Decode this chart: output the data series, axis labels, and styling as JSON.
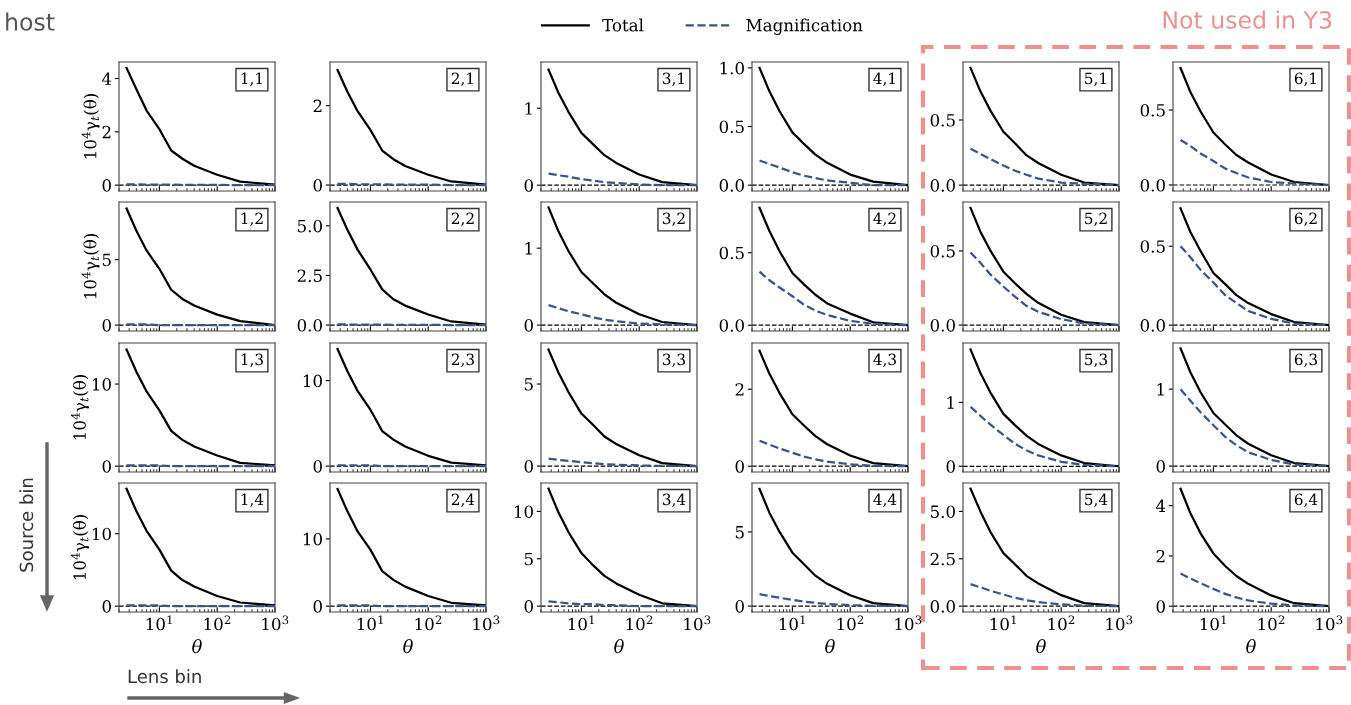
{
  "chart_data": [
    {
      "type": "line",
      "log": "x",
      "legend": "top",
      "x": [
        2.7,
        4,
        6,
        10,
        16,
        25,
        40,
        100,
        250,
        1000
      ],
      "xlim": [
        2,
        1000
      ],
      "xticks": [
        {
          "value": 10,
          "label": null
        },
        {
          "value": 100,
          "label": null
        },
        {
          "value": 1000,
          "label": null
        }
      ],
      "ylim": [
        -0.22,
        4.62
      ],
      "yticks": [
        0,
        2,
        4
      ],
      "tick_labels": "y",
      "ylabel": "10$^{4}$γ$_{t}$(θ)",
      "ref_lines": [
        {
          "axis": "y",
          "value": 0,
          "color": "#000000",
          "line_style": "dashed"
        }
      ],
      "annotations": [
        "1,1",
        "host",
        "Source bin",
        "Lens bin",
        "Not used in Y3"
      ],
      "series": [
        {
          "name": "Total",
          "color": "#000000",
          "line_style": "solid",
          "values": [
            4.4,
            3.6,
            2.8,
            2.1,
            1.3,
            0.99,
            0.73,
            0.39,
            0.13,
            0.02
          ]
        },
        {
          "name": "Magnification",
          "color": "#3a5488",
          "line_style": "dashed",
          "values": [
            0.03,
            0.03,
            0.02,
            0.02,
            0.02,
            0.01,
            0.01,
            0.01,
            0,
            0
          ]
        }
      ]
    },
    {
      "type": "line",
      "log": "x",
      "x": [
        2.7,
        4,
        6,
        10,
        16,
        25,
        40,
        100,
        250,
        1000
      ],
      "xlim": [
        2,
        1000
      ],
      "xticks": [
        {
          "value": 10,
          "label": null
        },
        {
          "value": 100,
          "label": null
        },
        {
          "value": 1000,
          "label": null
        }
      ],
      "ylim": [
        -0.15,
        3.1
      ],
      "yticks": [
        0,
        2
      ],
      "tick_labels": "y",
      "ref_lines": [
        {
          "axis": "y",
          "value": 0,
          "color": "#000000",
          "line_style": "dashed"
        }
      ],
      "annotations": [
        "2,1"
      ],
      "series": [
        {
          "color": "#000000",
          "line_style": "solid",
          "values": [
            2.9,
            2.35,
            1.86,
            1.39,
            0.87,
            0.65,
            0.48,
            0.26,
            0.09,
            0.01
          ]
        },
        {
          "color": "#3a5488",
          "line_style": "dashed",
          "values": [
            0.03,
            0.03,
            0.02,
            0.02,
            0.02,
            0.01,
            0.01,
            0.01,
            0,
            0
          ]
        }
      ]
    },
    {
      "type": "line",
      "log": "x",
      "x": [
        2.7,
        4,
        6,
        10,
        16,
        25,
        40,
        100,
        250,
        1000
      ],
      "xlim": [
        2,
        1000
      ],
      "xticks": [
        {
          "value": 10,
          "label": null
        },
        {
          "value": 100,
          "label": null
        },
        {
          "value": 1000,
          "label": null
        }
      ],
      "ylim": [
        -0.075,
        1.6
      ],
      "yticks": [
        0,
        1
      ],
      "tick_labels": "y",
      "ref_lines": [
        {
          "axis": "y",
          "value": 0,
          "color": "#000000",
          "line_style": "dashed"
        }
      ],
      "annotations": [
        "3,1"
      ],
      "series": [
        {
          "color": "#000000",
          "line_style": "solid",
          "values": [
            1.5,
            1.2,
            0.95,
            0.68,
            0.53,
            0.39,
            0.29,
            0.14,
            0.04,
            0
          ]
        },
        {
          "color": "#3a5488",
          "line_style": "dashed",
          "values": [
            0.15,
            0.13,
            0.11,
            0.08,
            0.06,
            0.04,
            0.03,
            0.01,
            0,
            0
          ]
        }
      ]
    },
    {
      "type": "line",
      "log": "x",
      "x": [
        2.7,
        4,
        6,
        10,
        16,
        25,
        40,
        100,
        250,
        1000
      ],
      "xlim": [
        2,
        1000
      ],
      "xticks": [
        {
          "value": 10,
          "label": null
        },
        {
          "value": 100,
          "label": null
        },
        {
          "value": 1000,
          "label": null
        }
      ],
      "ylim": [
        -0.05,
        1.05
      ],
      "yticks": [
        {
          "value": 0,
          "label": "0.0"
        },
        0.5,
        {
          "value": 1,
          "label": "1.0"
        }
      ],
      "tick_labels": "y",
      "ref_lines": [
        {
          "axis": "y",
          "value": 0,
          "color": "#000000",
          "line_style": "dashed"
        }
      ],
      "annotations": [
        "4,1"
      ],
      "series": [
        {
          "color": "#000000",
          "line_style": "solid",
          "values": [
            1.0,
            0.8,
            0.63,
            0.45,
            0.35,
            0.26,
            0.19,
            0.09,
            0.03,
            0
          ]
        },
        {
          "color": "#3a5488",
          "line_style": "dashed",
          "values": [
            0.21,
            0.18,
            0.15,
            0.11,
            0.08,
            0.06,
            0.04,
            0.02,
            0,
            0
          ]
        }
      ]
    },
    {
      "type": "line",
      "log": "x",
      "x": [
        2.7,
        4,
        6,
        10,
        16,
        25,
        40,
        100,
        250,
        1000
      ],
      "xlim": [
        2,
        1000
      ],
      "xticks": [
        {
          "value": 10,
          "label": null
        },
        {
          "value": 100,
          "label": null
        },
        {
          "value": 1000,
          "label": null
        }
      ],
      "ylim": [
        -0.045,
        0.945
      ],
      "yticks": [
        {
          "value": 0,
          "label": "0.0"
        },
        0.5
      ],
      "tick_labels": "y",
      "ref_lines": [
        {
          "axis": "y",
          "value": 0,
          "color": "#000000",
          "line_style": "dashed"
        }
      ],
      "annotations": [
        "5,1"
      ],
      "series": [
        {
          "color": "#000000",
          "line_style": "solid",
          "values": [
            0.9,
            0.72,
            0.57,
            0.41,
            0.32,
            0.23,
            0.17,
            0.08,
            0.02,
            0
          ]
        },
        {
          "color": "#3a5488",
          "line_style": "dashed",
          "values": [
            0.28,
            0.24,
            0.2,
            0.15,
            0.11,
            0.08,
            0.05,
            0.02,
            0.01,
            0
          ]
        }
      ]
    },
    {
      "type": "line",
      "log": "x",
      "x": [
        2.7,
        4,
        6,
        10,
        16,
        25,
        40,
        100,
        250,
        1000
      ],
      "xlim": [
        2,
        1000
      ],
      "xticks": [
        {
          "value": 10,
          "label": null
        },
        {
          "value": 100,
          "label": null
        },
        {
          "value": 1000,
          "label": null
        }
      ],
      "ylim": [
        -0.04,
        0.82
      ],
      "yticks": [
        {
          "value": 0,
          "label": "0.0"
        },
        0.5
      ],
      "tick_labels": "y",
      "ref_lines": [
        {
          "axis": "y",
          "value": 0,
          "color": "#000000",
          "line_style": "dashed"
        }
      ],
      "annotations": [
        "6,1"
      ],
      "series": [
        {
          "color": "#000000",
          "line_style": "solid",
          "values": [
            0.78,
            0.62,
            0.49,
            0.35,
            0.27,
            0.2,
            0.15,
            0.07,
            0.02,
            0
          ]
        },
        {
          "color": "#3a5488",
          "line_style": "dashed",
          "values": [
            0.3,
            0.26,
            0.21,
            0.16,
            0.11,
            0.08,
            0.05,
            0.02,
            0.01,
            0
          ]
        }
      ]
    },
    {
      "type": "line",
      "log": "x",
      "x": [
        2.7,
        4,
        6,
        10,
        16,
        25,
        40,
        100,
        250,
        1000
      ],
      "xlim": [
        2,
        1000
      ],
      "xticks": [
        {
          "value": 10,
          "label": null
        },
        {
          "value": 100,
          "label": null
        },
        {
          "value": 1000,
          "label": null
        }
      ],
      "ylim": [
        -0.45,
        9.4
      ],
      "yticks": [
        0,
        5
      ],
      "tick_labels": "y",
      "ylabel": "10$^{4}$γ$_{t}$(θ)",
      "ref_lines": [
        {
          "axis": "y",
          "value": 0,
          "color": "#000000",
          "line_style": "dashed"
        }
      ],
      "annotations": [
        "1,2"
      ],
      "series": [
        {
          "color": "#000000",
          "line_style": "solid",
          "values": [
            8.9,
            7.2,
            5.7,
            4.3,
            2.7,
            2.0,
            1.5,
            0.8,
            0.3,
            0
          ]
        },
        {
          "color": "#3a5488",
          "line_style": "dashed",
          "values": [
            0.05,
            0.05,
            0.05,
            0,
            0,
            0,
            0,
            0,
            0,
            0
          ]
        }
      ]
    },
    {
      "type": "line",
      "log": "x",
      "x": [
        2.7,
        4,
        6,
        10,
        16,
        25,
        40,
        100,
        250,
        1000
      ],
      "xlim": [
        2,
        1000
      ],
      "xticks": [
        {
          "value": 10,
          "label": null
        },
        {
          "value": 100,
          "label": null
        },
        {
          "value": 1000,
          "label": null
        }
      ],
      "ylim": [
        -0.3,
        6.2
      ],
      "yticks": [
        {
          "value": 0,
          "label": "0.0"
        },
        2.5,
        {
          "value": 5,
          "label": "5.0"
        }
      ],
      "tick_labels": "y",
      "ref_lines": [
        {
          "axis": "y",
          "value": 0,
          "color": "#000000",
          "line_style": "dashed"
        }
      ],
      "annotations": [
        "2,2"
      ],
      "series": [
        {
          "color": "#000000",
          "line_style": "solid",
          "values": [
            5.9,
            4.8,
            3.8,
            2.8,
            1.8,
            1.3,
            0.98,
            0.53,
            0.18,
            0.02
          ]
        },
        {
          "color": "#3a5488",
          "line_style": "dashed",
          "values": [
            0.03,
            0.03,
            0.02,
            0.02,
            0.02,
            0.01,
            0.01,
            0.01,
            0,
            0
          ]
        }
      ]
    },
    {
      "type": "line",
      "log": "x",
      "x": [
        2.7,
        4,
        6,
        10,
        16,
        25,
        40,
        100,
        250,
        1000
      ],
      "xlim": [
        2,
        1000
      ],
      "xticks": [
        {
          "value": 10,
          "label": null
        },
        {
          "value": 100,
          "label": null
        },
        {
          "value": 1000,
          "label": null
        }
      ],
      "ylim": [
        -0.077,
        1.6
      ],
      "yticks": [
        0,
        1
      ],
      "tick_labels": "y",
      "ref_lines": [
        {
          "axis": "y",
          "value": 0,
          "color": "#000000",
          "line_style": "dashed"
        }
      ],
      "annotations": [
        "3,2"
      ],
      "series": [
        {
          "color": "#000000",
          "line_style": "solid",
          "values": [
            1.53,
            1.22,
            0.96,
            0.69,
            0.54,
            0.4,
            0.29,
            0.14,
            0.04,
            0
          ]
        },
        {
          "color": "#3a5488",
          "line_style": "dashed",
          "values": [
            0.26,
            0.22,
            0.18,
            0.14,
            0.1,
            0.07,
            0.05,
            0.02,
            0.01,
            0
          ]
        }
      ]
    },
    {
      "type": "line",
      "log": "x",
      "x": [
        2.7,
        4,
        6,
        10,
        16,
        25,
        40,
        100,
        250,
        1000
      ],
      "xlim": [
        2,
        1000
      ],
      "xticks": [
        {
          "value": 10,
          "label": null
        },
        {
          "value": 100,
          "label": null
        },
        {
          "value": 1000,
          "label": null
        }
      ],
      "ylim": [
        -0.04,
        0.85
      ],
      "yticks": [
        {
          "value": 0,
          "label": "0.0"
        },
        0.5
      ],
      "tick_labels": "y",
      "ref_lines": [
        {
          "axis": "y",
          "value": 0,
          "color": "#000000",
          "line_style": "dashed"
        }
      ],
      "annotations": [
        "4,2"
      ],
      "series": [
        {
          "color": "#000000",
          "line_style": "solid",
          "values": [
            0.81,
            0.65,
            0.51,
            0.36,
            0.28,
            0.21,
            0.15,
            0.08,
            0.02,
            0
          ]
        },
        {
          "color": "#3a5488",
          "line_style": "dashed",
          "values": [
            0.37,
            0.31,
            0.26,
            0.2,
            0.14,
            0.1,
            0.07,
            0.03,
            0.01,
            0
          ]
        }
      ]
    },
    {
      "type": "line",
      "log": "x",
      "x": [
        2.7,
        4,
        6,
        10,
        16,
        25,
        40,
        100,
        250,
        1000
      ],
      "xlim": [
        2,
        1000
      ],
      "xticks": [
        {
          "value": 10,
          "label": null
        },
        {
          "value": 100,
          "label": null
        },
        {
          "value": 1000,
          "label": null
        }
      ],
      "ylim": [
        -0.04,
        0.83
      ],
      "yticks": [
        {
          "value": 0,
          "label": "0.0"
        },
        0.5
      ],
      "tick_labels": "y",
      "ref_lines": [
        {
          "axis": "y",
          "value": 0,
          "color": "#000000",
          "line_style": "dashed"
        }
      ],
      "annotations": [
        "5,2"
      ],
      "series": [
        {
          "color": "#000000",
          "line_style": "solid",
          "values": [
            0.79,
            0.63,
            0.5,
            0.36,
            0.28,
            0.21,
            0.15,
            0.07,
            0.02,
            0
          ]
        },
        {
          "color": "#3a5488",
          "line_style": "dashed",
          "values": [
            0.49,
            0.42,
            0.34,
            0.26,
            0.19,
            0.13,
            0.09,
            0.04,
            0.01,
            0
          ]
        }
      ]
    },
    {
      "type": "line",
      "log": "x",
      "x": [
        2.7,
        4,
        6,
        10,
        16,
        25,
        40,
        100,
        250,
        1000
      ],
      "xlim": [
        2,
        1000
      ],
      "xticks": [
        {
          "value": 10,
          "label": null
        },
        {
          "value": 100,
          "label": null
        },
        {
          "value": 1000,
          "label": null
        }
      ],
      "ylim": [
        -0.037,
        0.78
      ],
      "yticks": [
        {
          "value": 0,
          "label": "0.0"
        },
        0.5
      ],
      "tick_labels": "y",
      "ref_lines": [
        {
          "axis": "y",
          "value": 0,
          "color": "#000000",
          "line_style": "dashed"
        }
      ],
      "annotations": [
        "6,2"
      ],
      "series": [
        {
          "color": "#000000",
          "line_style": "solid",
          "values": [
            0.74,
            0.59,
            0.47,
            0.33,
            0.26,
            0.19,
            0.14,
            0.07,
            0.02,
            0
          ]
        },
        {
          "color": "#3a5488",
          "line_style": "dashed",
          "values": [
            0.5,
            0.43,
            0.35,
            0.27,
            0.19,
            0.14,
            0.09,
            0.04,
            0.01,
            0
          ]
        }
      ]
    },
    {
      "type": "line",
      "log": "x",
      "x": [
        2.7,
        4,
        6,
        10,
        16,
        25,
        40,
        100,
        250,
        1000
      ],
      "xlim": [
        2,
        1000
      ],
      "xticks": [
        {
          "value": 10,
          "label": null
        },
        {
          "value": 100,
          "label": null
        },
        {
          "value": 1000,
          "label": null
        }
      ],
      "ylim": [
        -0.71,
        15
      ],
      "yticks": [
        0,
        10
      ],
      "tick_labels": "y",
      "ylabel": "10$^{4}$γ$_{t}$(θ)",
      "ref_lines": [
        {
          "axis": "y",
          "value": 0,
          "color": "#000000",
          "line_style": "dashed"
        }
      ],
      "annotations": [
        "1,3"
      ],
      "series": [
        {
          "color": "#000000",
          "line_style": "solid",
          "values": [
            14.2,
            11.5,
            9.1,
            6.8,
            4.3,
            3.2,
            2.4,
            1.3,
            0.4,
            0.1
          ]
        },
        {
          "color": "#3a5488",
          "line_style": "dashed",
          "values": [
            0.1,
            0.1,
            0.1,
            0.1,
            0,
            0,
            0,
            0,
            0,
            0
          ]
        }
      ]
    },
    {
      "type": "line",
      "log": "x",
      "x": [
        2.7,
        4,
        6,
        10,
        16,
        25,
        40,
        100,
        250,
        1000
      ],
      "xlim": [
        2,
        1000
      ],
      "xticks": [
        {
          "value": 10,
          "label": null
        },
        {
          "value": 100,
          "label": null
        },
        {
          "value": 1000,
          "label": null
        }
      ],
      "ylim": [
        -0.69,
        14.4
      ],
      "yticks": [
        0,
        10
      ],
      "tick_labels": "y",
      "ref_lines": [
        {
          "axis": "y",
          "value": 0,
          "color": "#000000",
          "line_style": "dashed"
        }
      ],
      "annotations": [
        "2,3"
      ],
      "series": [
        {
          "color": "#000000",
          "line_style": "solid",
          "values": [
            13.7,
            11.1,
            8.8,
            6.6,
            4.1,
            3.1,
            2.3,
            1.2,
            0.4,
            0.1
          ]
        },
        {
          "color": "#3a5488",
          "line_style": "dashed",
          "values": [
            0.1,
            0.1,
            0.1,
            0.1,
            0,
            0,
            0,
            0,
            0,
            0
          ]
        }
      ]
    },
    {
      "type": "line",
      "log": "x",
      "x": [
        2.7,
        4,
        6,
        10,
        16,
        25,
        40,
        100,
        250,
        1000
      ],
      "xlim": [
        2,
        1000
      ],
      "xticks": [
        {
          "value": 10,
          "label": null
        },
        {
          "value": 100,
          "label": null
        },
        {
          "value": 1000,
          "label": null
        }
      ],
      "ylim": [
        -0.36,
        7.5
      ],
      "yticks": [
        0,
        5
      ],
      "tick_labels": "y",
      "ref_lines": [
        {
          "axis": "y",
          "value": 0,
          "color": "#000000",
          "line_style": "dashed"
        }
      ],
      "annotations": [
        "3,3"
      ],
      "series": [
        {
          "color": "#000000",
          "line_style": "solid",
          "values": [
            7.1,
            5.7,
            4.5,
            3.2,
            2.5,
            1.8,
            1.35,
            0.66,
            0.18,
            0
          ]
        },
        {
          "color": "#3a5488",
          "line_style": "dashed",
          "values": [
            0.45,
            0.38,
            0.32,
            0.24,
            0.17,
            0.12,
            0.08,
            0.04,
            0.01,
            0
          ]
        }
      ]
    },
    {
      "type": "line",
      "log": "x",
      "x": [
        2.7,
        4,
        6,
        10,
        16,
        25,
        40,
        100,
        250,
        1000
      ],
      "xlim": [
        2,
        1000
      ],
      "xticks": [
        {
          "value": 10,
          "label": null
        },
        {
          "value": 100,
          "label": null
        },
        {
          "value": 1000,
          "label": null
        }
      ],
      "ylim": [
        -0.15,
        3.2
      ],
      "yticks": [
        0,
        2
      ],
      "tick_labels": "y",
      "ref_lines": [
        {
          "axis": "y",
          "value": 0,
          "color": "#000000",
          "line_style": "dashed"
        }
      ],
      "annotations": [
        "4,3"
      ],
      "series": [
        {
          "color": "#000000",
          "line_style": "solid",
          "values": [
            3.0,
            2.4,
            1.9,
            1.35,
            1.05,
            0.78,
            0.57,
            0.28,
            0.08,
            0
          ]
        },
        {
          "color": "#3a5488",
          "line_style": "dashed",
          "values": [
            0.66,
            0.56,
            0.46,
            0.35,
            0.25,
            0.18,
            0.12,
            0.05,
            0.01,
            0
          ]
        }
      ]
    },
    {
      "type": "line",
      "log": "x",
      "x": [
        2.7,
        4,
        6,
        10,
        16,
        25,
        40,
        100,
        250,
        1000
      ],
      "xlim": [
        2,
        1000
      ],
      "xticks": [
        {
          "value": 10,
          "label": null
        },
        {
          "value": 100,
          "label": null
        },
        {
          "value": 1000,
          "label": null
        }
      ],
      "ylim": [
        -0.09,
        1.93
      ],
      "yticks": [
        0,
        1
      ],
      "tick_labels": "y",
      "ref_lines": [
        {
          "axis": "y",
          "value": 0,
          "color": "#000000",
          "line_style": "dashed"
        }
      ],
      "annotations": [
        "5,3"
      ],
      "series": [
        {
          "color": "#000000",
          "line_style": "solid",
          "values": [
            1.83,
            1.46,
            1.15,
            0.82,
            0.64,
            0.48,
            0.35,
            0.17,
            0.05,
            0
          ]
        },
        {
          "color": "#3a5488",
          "line_style": "dashed",
          "values": [
            0.93,
            0.79,
            0.65,
            0.49,
            0.35,
            0.25,
            0.17,
            0.07,
            0.02,
            0
          ]
        }
      ]
    },
    {
      "type": "line",
      "log": "x",
      "x": [
        2.7,
        4,
        6,
        10,
        16,
        25,
        40,
        100,
        250,
        1000
      ],
      "xlim": [
        2,
        1000
      ],
      "xticks": [
        {
          "value": 10,
          "label": null
        },
        {
          "value": 100,
          "label": null
        },
        {
          "value": 1000,
          "label": null
        }
      ],
      "ylim": [
        -0.077,
        1.6
      ],
      "yticks": [
        0,
        1
      ],
      "tick_labels": "y",
      "ref_lines": [
        {
          "axis": "y",
          "value": 0,
          "color": "#000000",
          "line_style": "dashed"
        }
      ],
      "annotations": [
        "6,3"
      ],
      "series": [
        {
          "color": "#000000",
          "line_style": "solid",
          "values": [
            1.53,
            1.22,
            0.96,
            0.69,
            0.54,
            0.4,
            0.29,
            0.14,
            0.04,
            0
          ]
        },
        {
          "color": "#3a5488",
          "line_style": "dashed",
          "values": [
            1.0,
            0.85,
            0.7,
            0.53,
            0.38,
            0.27,
            0.18,
            0.08,
            0.02,
            0
          ]
        }
      ]
    },
    {
      "type": "line",
      "log": "x",
      "x": [
        2.7,
        4,
        6,
        10,
        16,
        25,
        40,
        100,
        250,
        1000
      ],
      "xlim": [
        2,
        1000
      ],
      "xticks": [
        {
          "value": 10,
          "label": "10$^{1}$"
        },
        {
          "value": 100,
          "label": "10$^{2}$"
        },
        {
          "value": 1000,
          "label": "10$^{3}$"
        }
      ],
      "ylim": [
        -0.81,
        17
      ],
      "yticks": [
        0,
        10
      ],
      "xlabel": "θ",
      "ylabel": "10$^{4}$γ$_{t}$(θ)",
      "ref_lines": [
        {
          "axis": "y",
          "value": 0,
          "color": "#000000",
          "line_style": "dashed"
        }
      ],
      "annotations": [
        "1,4"
      ],
      "series": [
        {
          "color": "#000000",
          "line_style": "solid",
          "values": [
            16.2,
            13.1,
            10.4,
            7.8,
            4.9,
            3.6,
            2.7,
            1.4,
            0.5,
            0.1
          ]
        },
        {
          "color": "#3a5488",
          "line_style": "dashed",
          "values": [
            0.1,
            0.1,
            0.1,
            0.1,
            0,
            0,
            0,
            0,
            0,
            0
          ]
        }
      ]
    },
    {
      "type": "line",
      "log": "x",
      "x": [
        2.7,
        4,
        6,
        10,
        16,
        25,
        40,
        100,
        250,
        1000
      ],
      "xlim": [
        2,
        1000
      ],
      "xticks": [
        {
          "value": 10,
          "label": "10$^{1}$"
        },
        {
          "value": 100,
          "label": "10$^{2}$"
        },
        {
          "value": 1000,
          "label": "10$^{3}$"
        }
      ],
      "ylim": [
        -0.87,
        18.3
      ],
      "yticks": [
        0,
        10
      ],
      "xlabel": "θ",
      "ref_lines": [
        {
          "axis": "y",
          "value": 0,
          "color": "#000000",
          "line_style": "dashed"
        }
      ],
      "annotations": [
        "2,4"
      ],
      "series": [
        {
          "color": "#000000",
          "line_style": "solid",
          "values": [
            17.4,
            14.1,
            11.1,
            8.4,
            5.2,
            3.9,
            2.9,
            1.5,
            0.5,
            0.1
          ]
        },
        {
          "color": "#3a5488",
          "line_style": "dashed",
          "values": [
            0.1,
            0.1,
            0.1,
            0.1,
            0,
            0,
            0,
            0,
            0,
            0
          ]
        }
      ]
    },
    {
      "type": "line",
      "log": "x",
      "x": [
        2.7,
        4,
        6,
        10,
        16,
        25,
        40,
        100,
        250,
        1000
      ],
      "xlim": [
        2,
        1000
      ],
      "xticks": [
        {
          "value": 10,
          "label": "10$^{1}$"
        },
        {
          "value": 100,
          "label": "10$^{2}$"
        },
        {
          "value": 1000,
          "label": "10$^{3}$"
        }
      ],
      "ylim": [
        -0.62,
        13.0
      ],
      "yticks": [
        0,
        5,
        10
      ],
      "xlabel": "θ",
      "ref_lines": [
        {
          "axis": "y",
          "value": 0,
          "color": "#000000",
          "line_style": "dashed"
        }
      ],
      "annotations": [
        "3,4"
      ],
      "series": [
        {
          "color": "#000000",
          "line_style": "solid",
          "values": [
            12.4,
            9.9,
            7.8,
            5.6,
            4.3,
            3.2,
            2.4,
            1.2,
            0.3,
            0
          ]
        },
        {
          "color": "#3a5488",
          "line_style": "dashed",
          "values": [
            0.5,
            0.4,
            0.3,
            0.2,
            0.2,
            0.1,
            0.1,
            0,
            0,
            0
          ]
        }
      ]
    },
    {
      "type": "line",
      "log": "x",
      "x": [
        2.7,
        4,
        6,
        10,
        16,
        25,
        40,
        100,
        250,
        1000
      ],
      "xlim": [
        2,
        1000
      ],
      "xticks": [
        {
          "value": 10,
          "label": "10$^{1}$"
        },
        {
          "value": 100,
          "label": "10$^{2}$"
        },
        {
          "value": 1000,
          "label": "10$^{3}$"
        }
      ],
      "ylim": [
        -0.4,
        8.3
      ],
      "yticks": [
        0,
        5
      ],
      "xlabel": "θ",
      "ref_lines": [
        {
          "axis": "y",
          "value": 0,
          "color": "#000000",
          "line_style": "dashed"
        }
      ],
      "annotations": [
        "4,4"
      ],
      "series": [
        {
          "color": "#000000",
          "line_style": "solid",
          "values": [
            7.9,
            6.3,
            5.0,
            3.6,
            2.8,
            2.05,
            1.5,
            0.73,
            0.2,
            0
          ]
        },
        {
          "color": "#3a5488",
          "line_style": "dashed",
          "values": [
            0.8,
            0.68,
            0.56,
            0.42,
            0.3,
            0.22,
            0.14,
            0.06,
            0.02,
            0
          ]
        }
      ]
    },
    {
      "type": "line",
      "log": "x",
      "x": [
        2.7,
        4,
        6,
        10,
        16,
        25,
        40,
        100,
        250,
        1000
      ],
      "xlim": [
        2,
        1000
      ],
      "xticks": [
        {
          "value": 10,
          "label": "10$^{1}$"
        },
        {
          "value": 100,
          "label": "10$^{2}$"
        },
        {
          "value": 1000,
          "label": "10$^{3}$"
        }
      ],
      "ylim": [
        -0.31,
        6.5
      ],
      "yticks": [
        {
          "value": 0,
          "label": "0.0"
        },
        2.5,
        {
          "value": 5,
          "label": "5.0"
        }
      ],
      "xlabel": "θ",
      "ref_lines": [
        {
          "axis": "y",
          "value": 0,
          "color": "#000000",
          "line_style": "dashed"
        }
      ],
      "annotations": [
        "5,4"
      ],
      "series": [
        {
          "color": "#000000",
          "line_style": "solid",
          "values": [
            6.2,
            5.0,
            3.9,
            2.8,
            2.2,
            1.6,
            1.2,
            0.58,
            0.16,
            0
          ]
        },
        {
          "color": "#3a5488",
          "line_style": "dashed",
          "values": [
            1.16,
            0.99,
            0.81,
            0.61,
            0.44,
            0.31,
            0.21,
            0.09,
            0.02,
            0
          ]
        }
      ]
    },
    {
      "type": "line",
      "log": "x",
      "x": [
        2.7,
        4,
        6,
        10,
        16,
        25,
        40,
        100,
        250,
        1000
      ],
      "xlim": [
        2,
        1000
      ],
      "xticks": [
        {
          "value": 10,
          "label": "10$^{1}$"
        },
        {
          "value": 100,
          "label": "10$^{2}$"
        },
        {
          "value": 1000,
          "label": "10$^{3}$"
        }
      ],
      "ylim": [
        -0.23,
        4.9
      ],
      "yticks": [
        0,
        2,
        4
      ],
      "xlabel": "θ",
      "ref_lines": [
        {
          "axis": "y",
          "value": 0,
          "color": "#000000",
          "line_style": "dashed"
        }
      ],
      "annotations": [
        "6,4"
      ],
      "series": [
        {
          "color": "#000000",
          "line_style": "solid",
          "values": [
            4.67,
            3.7,
            2.9,
            2.1,
            1.6,
            1.2,
            0.89,
            0.43,
            0.12,
            0
          ]
        },
        {
          "color": "#3a5488",
          "line_style": "dashed",
          "values": [
            1.3,
            1.1,
            0.91,
            0.69,
            0.49,
            0.35,
            0.23,
            0.1,
            0.03,
            0
          ]
        }
      ]
    }
  ]
}
